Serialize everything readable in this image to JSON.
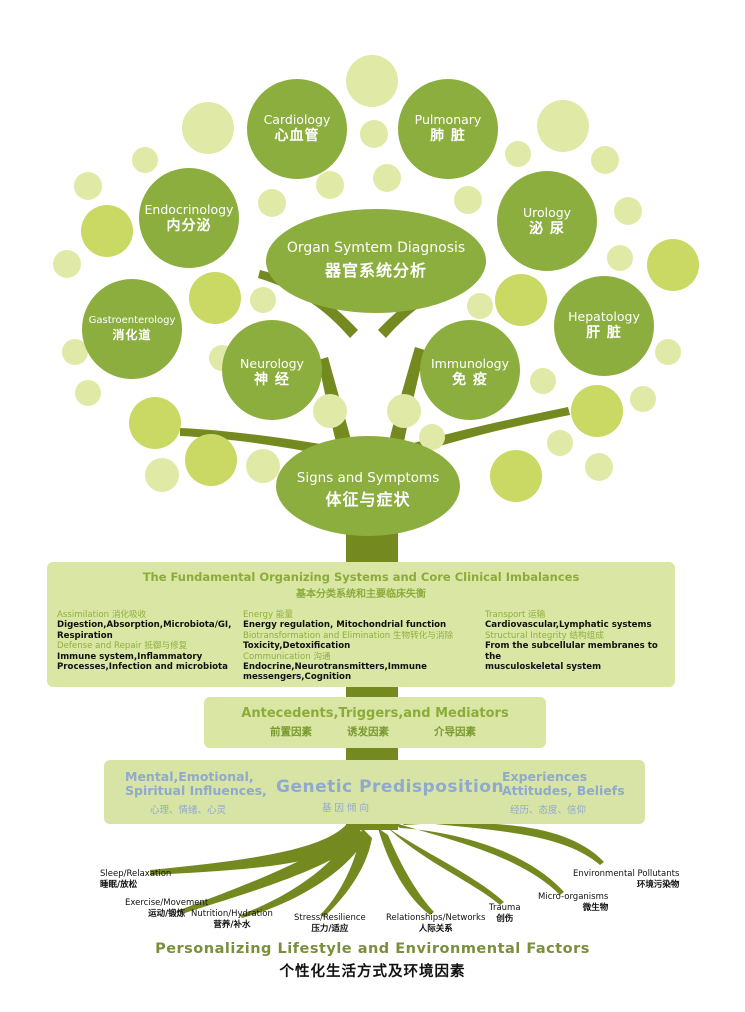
{
  "colors": {
    "dark_green": "#8bae3f",
    "trunk": "#74891f",
    "light_circle": "#e1e9a7",
    "mid_circle": "#c9d964",
    "panel": "#d9e6a4",
    "blue_text": "#8fa9cf"
  },
  "organs": [
    {
      "en": "Cardiology",
      "zh": "心血管"
    },
    {
      "en": "Pulmonary",
      "zh": "肺 脏"
    },
    {
      "en": "Endocrinology",
      "zh": "内分泌"
    },
    {
      "en": "Urology",
      "zh": "泌 尿"
    },
    {
      "en": "Gastroenterology",
      "zh": "消化道"
    },
    {
      "en": "Hepatology",
      "zh": "肝 脏"
    },
    {
      "en": "Neurology",
      "zh": "神 经"
    },
    {
      "en": "Immunology",
      "zh": "免 疫"
    }
  ],
  "organ_diagnosis": {
    "en": "Organ Symtem Diagnosis",
    "zh": "器官系统分析"
  },
  "signs": {
    "en": "Signs and Symptoms",
    "zh": "体征与症状"
  },
  "fundamental": {
    "title": "The Fundamental Organizing Systems and Core Clinical Imbalances",
    "title_zh": "基本分类系统和主要临床失衡",
    "assimilation_hd": "Assimilation 消化吸收",
    "assimilation": "Digestion,Absorption,Microbiota/GI,",
    "assimilation2": "Respiration",
    "defense_hd": "Defense and Repair 抵御与修复",
    "defense": "Immune system,Inflammatory",
    "defense2": "Processes,Infection and microbiota",
    "energy_hd": "Energy 能量",
    "energy": "Energy regulation, Mitochondrial function",
    "biotrans_hd": "Biotransformation and Elimination 生物转化与消除",
    "biotrans": "Toxicity,Detoxification",
    "comm_hd": "Communication 沟通",
    "comm": "Endocrine,Neurotransmitters,Immune",
    "comm2": "messengers,Cognition",
    "transport_hd": "Transport 运输",
    "transport": "Cardiovascular,Lymphatic systems",
    "structural_hd": "Structural Integrity 结构组成",
    "structural": "From the subcellular membranes to the",
    "structural2": "musculoskeletal system"
  },
  "antecedents": {
    "title": "Antecedents,Triggers,and Mediators",
    "zh1": "前置因素",
    "zh2": "诱发因素",
    "zh3": "介导因素"
  },
  "genetic": {
    "left1": "Mental,Emotional,",
    "left2": "Spiritual Influences,",
    "left_zh": "心理、情绪、心灵",
    "center": "Genetic Predisposition",
    "center_zh": "基  因  倾  向",
    "right1": "Experiences",
    "right2": "Attitudes, Beliefs",
    "right_zh": "经历、态度、信仰"
  },
  "roots": [
    {
      "en": "Sleep/Relaxation",
      "zh": "睡眠/放松"
    },
    {
      "en": "Exercise/Movement",
      "zh": "运动/锻炼"
    },
    {
      "en": "Nutrition/Hydration",
      "zh": "营养/补水"
    },
    {
      "en": "Stress/Resilience",
      "zh": "压力/适应"
    },
    {
      "en": "Relationships/Networks",
      "zh": "人际关系"
    },
    {
      "en": "Trauma",
      "zh": "创伤"
    },
    {
      "en": "Micro-organisms",
      "zh": "微生物"
    },
    {
      "en": "Environmental Pollutants",
      "zh": "环境污染物"
    }
  ],
  "footer": {
    "en": "Personalizing Lifestyle and Environmental Factors",
    "zh": "个性化生活方式及环境因素"
  }
}
